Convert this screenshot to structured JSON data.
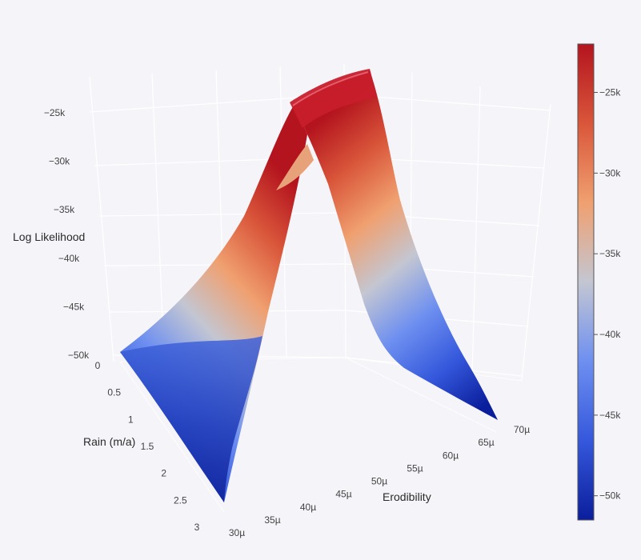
{
  "chart_data": {
    "type": "surface",
    "colorscale": [
      "#0a1e9c",
      "#3558dc",
      "#6d8ff0",
      "#c3c6d2",
      "#f0a070",
      "#d9563a",
      "#b4141e"
    ],
    "axes": {
      "z": {
        "title": "Log Likelihood",
        "range": [
          -50000,
          -23000
        ],
        "tick_values": [
          -50000,
          -45000,
          -40000,
          -35000,
          -30000,
          -25000
        ],
        "tick_labels": [
          "−50k",
          "−45k",
          "−40k",
          "−35k",
          "−30k",
          "−25k"
        ]
      },
      "y": {
        "title": "Rain (m/a)",
        "range": [
          0,
          3
        ],
        "tick_values": [
          0,
          0.5,
          1,
          1.5,
          2,
          2.5,
          3
        ],
        "tick_labels": [
          "0",
          "0.5",
          "1",
          "1.5",
          "2",
          "2.5",
          "3"
        ]
      },
      "x": {
        "title": "Erodibility",
        "range": [
          3e-05,
          7e-05
        ],
        "tick_values": [
          3e-05,
          3.5e-05,
          4e-05,
          4.5e-05,
          5e-05,
          5.5e-05,
          6e-05,
          6.5e-05,
          7e-05
        ],
        "tick_labels": [
          "30µ",
          "35µ",
          "40µ",
          "45µ",
          "50µ",
          "55µ",
          "60µ",
          "65µ",
          "70µ"
        ]
      }
    },
    "colorbar": {
      "range": [
        -51500,
        -22000
      ],
      "tick_values": [
        -50000,
        -45000,
        -40000,
        -35000,
        -30000,
        -25000
      ],
      "tick_labels": [
        "−50k",
        "−45k",
        "−40k",
        "−35k",
        "−30k",
        "−25k"
      ]
    },
    "surface_ridge": {
      "description_free": true,
      "peak_value": -23000,
      "min_value": -51000
    }
  }
}
